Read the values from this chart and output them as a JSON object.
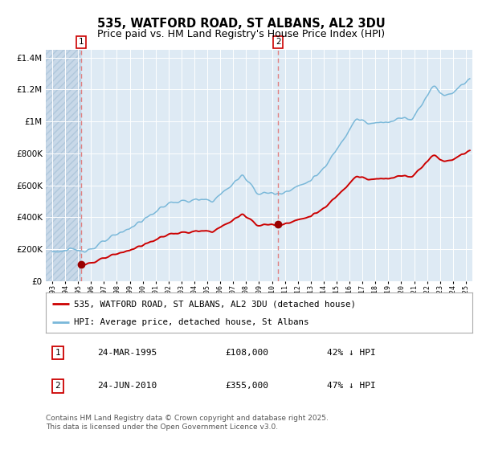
{
  "title": "535, WATFORD ROAD, ST ALBANS, AL2 3DU",
  "subtitle": "Price paid vs. HM Land Registry's House Price Index (HPI)",
  "legend_line1": "535, WATFORD ROAD, ST ALBANS, AL2 3DU (detached house)",
  "legend_line2": "HPI: Average price, detached house, St Albans",
  "sale1_year": 1995.22,
  "sale1_price": 108000,
  "sale1_text": "24-MAR-1995",
  "sale1_price_text": "£108,000",
  "sale1_pct_text": "42% ↓ HPI",
  "sale2_year": 2010.48,
  "sale2_price": 355000,
  "sale2_text": "24-JUN-2010",
  "sale2_price_text": "£355,000",
  "sale2_pct_text": "47% ↓ HPI",
  "hpi_color": "#7ab8d9",
  "price_color": "#cc0000",
  "marker_color": "#990000",
  "vline_color": "#e08080",
  "box_color": "#cc0000",
  "plot_bg_color": "#deeaf4",
  "hatch_color": "#c8d8e8",
  "footer_text": "Contains HM Land Registry data © Crown copyright and database right 2025.\nThis data is licensed under the Open Government Licence v3.0.",
  "title_fontsize": 10.5,
  "subtitle_fontsize": 9,
  "footer_fontsize": 6.5
}
